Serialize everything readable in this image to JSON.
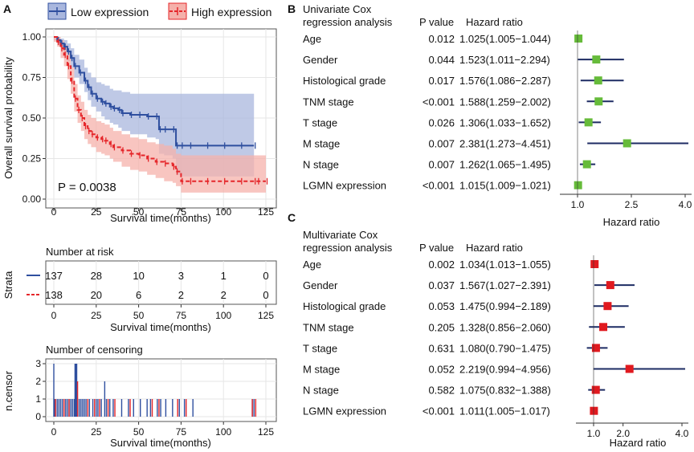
{
  "panel_labels": {
    "a": "A",
    "b": "B",
    "c": "C"
  },
  "legend": {
    "low": "Low expression",
    "high": "High expression"
  },
  "colors": {
    "low": "#2f4f9f",
    "high": "#e5262a",
    "low_band": "#a9b7de",
    "high_band": "#f5b1ab",
    "forest_line": "#1d2b63",
    "uni_marker": "#66bb3a",
    "multi_marker": "#e0191f"
  },
  "chart_data": [
    {
      "id": "km",
      "type": "line",
      "title": "",
      "xlabel": "Survival time(months)",
      "ylabel": "Overall survival probability",
      "xlim": [
        0,
        125
      ],
      "ylim": [
        0,
        1
      ],
      "xticks": [
        0,
        25,
        50,
        75,
        100,
        125
      ],
      "yticks": [
        "0.00",
        "0.25",
        "0.50",
        "0.75",
        "1.00"
      ],
      "pvalue_text": "P = 0.0038",
      "series": [
        {
          "name": "Low expression",
          "x": [
            0,
            2,
            4,
            6,
            8,
            10,
            12,
            15,
            18,
            20,
            22,
            25,
            28,
            30,
            33,
            35,
            38,
            40,
            45,
            50,
            55,
            60,
            62,
            65,
            70,
            72,
            75,
            80,
            90,
            100,
            110,
            118
          ],
          "y": [
            1.0,
            0.98,
            0.96,
            0.94,
            0.91,
            0.87,
            0.82,
            0.78,
            0.73,
            0.69,
            0.65,
            0.62,
            0.6,
            0.59,
            0.57,
            0.56,
            0.55,
            0.53,
            0.52,
            0.52,
            0.51,
            0.51,
            0.43,
            0.43,
            0.43,
            0.33,
            0.33,
            0.33,
            0.33,
            0.33,
            0.33,
            0.33
          ],
          "upper": [
            1.0,
            1.0,
            0.99,
            0.98,
            0.96,
            0.93,
            0.89,
            0.86,
            0.81,
            0.78,
            0.75,
            0.72,
            0.71,
            0.7,
            0.68,
            0.67,
            0.67,
            0.66,
            0.65,
            0.65,
            0.65,
            0.65,
            0.65,
            0.65,
            0.65,
            0.65,
            0.65,
            0.65,
            0.65,
            0.65,
            0.65,
            0.65
          ],
          "lower": [
            0.98,
            0.95,
            0.92,
            0.89,
            0.85,
            0.81,
            0.75,
            0.71,
            0.66,
            0.61,
            0.57,
            0.54,
            0.51,
            0.49,
            0.47,
            0.46,
            0.44,
            0.42,
            0.4,
            0.4,
            0.38,
            0.37,
            0.28,
            0.27,
            0.25,
            0.15,
            0.14,
            0.14,
            0.14,
            0.14,
            0.14,
            0.14
          ]
        },
        {
          "name": "High expression",
          "x": [
            0,
            2,
            4,
            6,
            8,
            10,
            12,
            14,
            16,
            18,
            20,
            22,
            25,
            28,
            30,
            33,
            35,
            40,
            45,
            50,
            55,
            60,
            65,
            70,
            72,
            75,
            80,
            90,
            100,
            110,
            118,
            120,
            125
          ],
          "y": [
            1.0,
            0.97,
            0.93,
            0.89,
            0.82,
            0.73,
            0.62,
            0.55,
            0.5,
            0.45,
            0.42,
            0.4,
            0.38,
            0.37,
            0.36,
            0.34,
            0.32,
            0.3,
            0.28,
            0.27,
            0.25,
            0.23,
            0.22,
            0.2,
            0.17,
            0.11,
            0.11,
            0.11,
            0.11,
            0.11,
            0.11,
            0.11,
            0.11
          ],
          "upper": [
            1.0,
            1.0,
            0.98,
            0.95,
            0.9,
            0.81,
            0.71,
            0.64,
            0.6,
            0.55,
            0.52,
            0.5,
            0.48,
            0.47,
            0.46,
            0.44,
            0.42,
            0.4,
            0.38,
            0.37,
            0.35,
            0.34,
            0.33,
            0.31,
            0.28,
            0.27,
            0.27,
            0.27,
            0.27,
            0.27,
            0.27,
            0.27,
            0.27
          ],
          "lower": [
            0.97,
            0.94,
            0.87,
            0.82,
            0.74,
            0.65,
            0.54,
            0.47,
            0.42,
            0.37,
            0.34,
            0.32,
            0.29,
            0.28,
            0.27,
            0.25,
            0.23,
            0.2,
            0.18,
            0.17,
            0.15,
            0.13,
            0.11,
            0.1,
            0.08,
            0.04,
            0.04,
            0.04,
            0.04,
            0.04,
            0.04,
            0.04,
            0.04
          ]
        }
      ]
    },
    {
      "id": "risk",
      "type": "table",
      "title": "Number at risk",
      "ylabel": "Strata",
      "xlabel": "Survival time(months)",
      "xlim": [
        0,
        125
      ],
      "xticks": [
        0,
        25,
        50,
        75,
        100,
        125
      ],
      "times": [
        0,
        25,
        50,
        75,
        100,
        125
      ],
      "rows": [
        {
          "name": "Low expression",
          "values": [
            137,
            28,
            10,
            3,
            1,
            0
          ]
        },
        {
          "name": "High expression",
          "values": [
            138,
            20,
            6,
            2,
            2,
            0
          ]
        }
      ]
    },
    {
      "id": "censor",
      "type": "bar",
      "title": "Number of censoring",
      "ylabel": "n.censor",
      "xlabel": "Survival time(months)",
      "xlim": [
        0,
        125
      ],
      "ylim": [
        0,
        3
      ],
      "xticks": [
        0,
        25,
        50,
        75,
        100,
        125
      ],
      "yticks": [
        0,
        1,
        2,
        3
      ],
      "series": [
        {
          "name": "Low expression",
          "x": [
            0,
            0.5,
            2,
            3,
            4,
            5,
            6,
            7,
            8,
            9,
            10,
            11,
            12,
            12.5,
            13,
            13.5,
            14,
            15,
            16,
            17,
            18,
            19,
            21,
            23,
            25,
            26,
            28,
            30,
            31,
            33,
            35,
            40,
            44,
            47,
            51,
            55,
            57,
            61,
            63,
            66,
            70,
            74,
            77,
            82,
            117,
            118
          ],
          "values": [
            3,
            1,
            1,
            1,
            1,
            1,
            1,
            1,
            1,
            1,
            1,
            1,
            1,
            3,
            3,
            3,
            1,
            1,
            1,
            1,
            1,
            1,
            1,
            1,
            1,
            1,
            1,
            2,
            1,
            1,
            1,
            1,
            1,
            1,
            1,
            1,
            1,
            1,
            1,
            1,
            1,
            1,
            1,
            1,
            1,
            1
          ]
        },
        {
          "name": "High expression",
          "x": [
            1,
            6,
            9,
            14,
            20,
            24,
            27,
            32,
            36,
            45,
            58,
            62,
            73,
            78,
            117,
            119
          ],
          "values": [
            1,
            1,
            1,
            2,
            1,
            1,
            1,
            1,
            1,
            1,
            1,
            1,
            1,
            1,
            1,
            1
          ]
        }
      ]
    },
    {
      "id": "uni",
      "type": "scatter",
      "title": "Univariate Cox regression analysis",
      "header_line1": "Univariate  Cox",
      "header_line2": "regression analysis",
      "col_p": "P value",
      "col_hr": "Hazard ratio",
      "xlabel": "Hazard ratio",
      "xlim": [
        1.0,
        4.0
      ],
      "xticks": [
        "1.0",
        "2.5",
        "4.0"
      ],
      "rows": [
        {
          "var": "Age",
          "p": "0.012",
          "hr_text": "1.025(1.005−1.044)",
          "hr": 1.025,
          "lo": 1.005,
          "hi": 1.044
        },
        {
          "var": "Gender",
          "p": "0.044",
          "hr_text": "1.523(1.011−2.294)",
          "hr": 1.523,
          "lo": 1.011,
          "hi": 2.294
        },
        {
          "var": "Histological grade",
          "p": "0.017",
          "hr_text": "1.576(1.086−2.287)",
          "hr": 1.576,
          "lo": 1.086,
          "hi": 2.287
        },
        {
          "var": "TNM stage",
          "p": "<0.001",
          "hr_text": "1.588(1.259−2.002)",
          "hr": 1.588,
          "lo": 1.259,
          "hi": 2.002
        },
        {
          "var": "T stage",
          "p": "0.026",
          "hr_text": "1.306(1.033−1.652)",
          "hr": 1.306,
          "lo": 1.033,
          "hi": 1.652
        },
        {
          "var": "M stage",
          "p": "0.007",
          "hr_text": "2.381(1.273−4.451)",
          "hr": 2.381,
          "lo": 1.273,
          "hi": 4.451
        },
        {
          "var": "N stage",
          "p": "0.007",
          "hr_text": "1.262(1.065−1.495)",
          "hr": 1.262,
          "lo": 1.065,
          "hi": 1.495
        },
        {
          "var": "LGMN expression",
          "p": "<0.001",
          "hr_text": "1.015(1.009−1.021)",
          "hr": 1.015,
          "lo": 1.009,
          "hi": 1.021
        }
      ]
    },
    {
      "id": "multi",
      "type": "scatter",
      "title": "Multivariate Cox regression analysis",
      "header_line1": "Multivariate Cox",
      "header_line2": "regression analysis",
      "col_p": "P value",
      "col_hr": "Hazard ratio",
      "xlabel": "Hazard ratio",
      "xlim": [
        1.0,
        4.0
      ],
      "xticks": [
        "1.0",
        "2.0",
        "4.0"
      ],
      "rows": [
        {
          "var": "Age",
          "p": "0.002",
          "hr_text": "1.034(1.013−1.055)",
          "hr": 1.034,
          "lo": 1.013,
          "hi": 1.055
        },
        {
          "var": "Gender",
          "p": "0.037",
          "hr_text": "1.567(1.027−2.391)",
          "hr": 1.567,
          "lo": 1.027,
          "hi": 2.391
        },
        {
          "var": "Histological grade",
          "p": "0.053",
          "hr_text": "1.475(0.994−2.189)",
          "hr": 1.475,
          "lo": 0.994,
          "hi": 2.189
        },
        {
          "var": "TNM stage",
          "p": "0.205",
          "hr_text": "1.328(0.856−2.060)",
          "hr": 1.328,
          "lo": 0.856,
          "hi": 2.06
        },
        {
          "var": "T stage",
          "p": "0.631",
          "hr_text": "1.080(0.790−1.475)",
          "hr": 1.08,
          "lo": 0.79,
          "hi": 1.475
        },
        {
          "var": "M stage",
          "p": "0.052",
          "hr_text": "2.219(0.994−4.956)",
          "hr": 2.219,
          "lo": 0.994,
          "hi": 4.956
        },
        {
          "var": "N stage",
          "p": "0.582",
          "hr_text": "1.075(0.832−1.388)",
          "hr": 1.075,
          "lo": 0.832,
          "hi": 1.388
        },
        {
          "var": "LGMN expression",
          "p": "<0.001",
          "hr_text": "1.011(1.005−1.017)",
          "hr": 1.011,
          "lo": 1.005,
          "hi": 1.017
        }
      ]
    }
  ]
}
